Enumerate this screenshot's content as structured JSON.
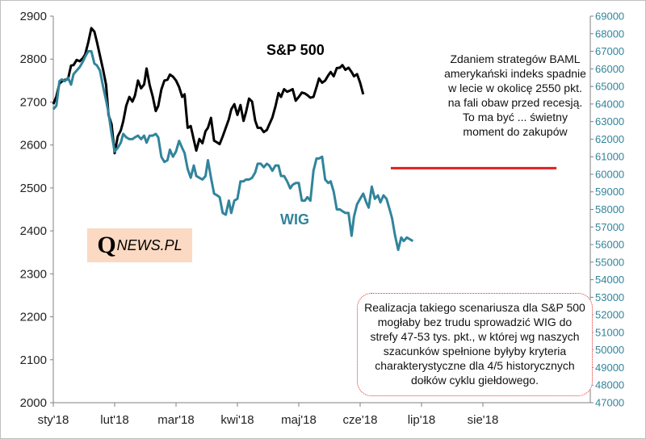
{
  "logo": {
    "q": "Q",
    "rest": "NEWS.PL"
  },
  "note_top": "Zdaniem strategów BAML amerykański indeks spadnie w lecie w okolicę 2550 pkt. na fali obaw przed recesją. To ma być  ... świetny moment do zakupów",
  "note_bottom": "Realizacja takiego scenariusza dla S&P 500  mogłaby bez trudu sprowadzić WIG do strefy 47-53 tys. pkt., w której wg naszych szacunków spełnione byłyby kryteria charakterystyczne dla 4/5 historycznych dołków cyklu giełdowego.",
  "colors": {
    "sp500": "#000000",
    "wig": "#31849b",
    "target_line": "#e02020",
    "note_border": "#e03030",
    "logo_bg": "#fbd9c2"
  },
  "chart_data": {
    "type": "line",
    "x_tick_labels": [
      "sty'18",
      "lut'18",
      "mar'18",
      "kwi'18",
      "maj'18",
      "cze'18",
      "lip'18",
      "sie'18"
    ],
    "x_range_months": [
      0,
      8
    ],
    "y_left": {
      "ticks": [
        2000,
        2100,
        2200,
        2300,
        2400,
        2500,
        2600,
        2700,
        2800,
        2900
      ],
      "range": [
        2000,
        2900
      ]
    },
    "y_right": {
      "ticks": [
        47000,
        48000,
        49000,
        50000,
        51000,
        52000,
        53000,
        54000,
        55000,
        56000,
        57000,
        58000,
        59000,
        60000,
        61000,
        62000,
        63000,
        64000,
        65000,
        66000,
        67000,
        68000,
        69000
      ],
      "range": [
        47000,
        69000
      ]
    },
    "grid": false,
    "series": [
      {
        "name": "S&P 500",
        "axis": "left",
        "color": "#000000",
        "points": [
          [
            0.0,
            2695
          ],
          [
            0.05,
            2713
          ],
          [
            0.1,
            2743
          ],
          [
            0.14,
            2748
          ],
          [
            0.19,
            2752
          ],
          [
            0.24,
            2753
          ],
          [
            0.29,
            2785
          ],
          [
            0.33,
            2786
          ],
          [
            0.38,
            2798
          ],
          [
            0.43,
            2795
          ],
          [
            0.48,
            2802
          ],
          [
            0.52,
            2811
          ],
          [
            0.57,
            2839
          ],
          [
            0.62,
            2872
          ],
          [
            0.67,
            2864
          ],
          [
            0.71,
            2840
          ],
          [
            0.76,
            2808
          ],
          [
            0.81,
            2776
          ],
          [
            0.86,
            2740
          ],
          [
            0.9,
            2670
          ],
          [
            0.95,
            2648
          ],
          [
            1.0,
            2581
          ],
          [
            1.05,
            2620
          ],
          [
            1.1,
            2634
          ],
          [
            1.14,
            2655
          ],
          [
            1.19,
            2692
          ],
          [
            1.24,
            2712
          ],
          [
            1.29,
            2701
          ],
          [
            1.33,
            2715
          ],
          [
            1.38,
            2750
          ],
          [
            1.43,
            2732
          ],
          [
            1.48,
            2741
          ],
          [
            1.52,
            2778
          ],
          [
            1.57,
            2740
          ],
          [
            1.62,
            2713
          ],
          [
            1.67,
            2679
          ],
          [
            1.71,
            2691
          ],
          [
            1.76,
            2729
          ],
          [
            1.81,
            2750
          ],
          [
            1.86,
            2752
          ],
          [
            1.9,
            2764
          ],
          [
            1.95,
            2759
          ],
          [
            2.0,
            2750
          ],
          [
            2.05,
            2735
          ],
          [
            2.1,
            2712
          ],
          [
            2.14,
            2718
          ],
          [
            2.19,
            2640
          ],
          [
            2.24,
            2644
          ],
          [
            2.29,
            2612
          ],
          [
            2.33,
            2587
          ],
          [
            2.38,
            2614
          ],
          [
            2.43,
            2604
          ],
          [
            2.48,
            2632
          ],
          [
            2.52,
            2640
          ],
          [
            2.57,
            2663
          ],
          [
            2.62,
            2610
          ],
          [
            2.67,
            2606
          ],
          [
            2.71,
            2602
          ],
          [
            2.76,
            2620
          ],
          [
            2.81,
            2640
          ],
          [
            2.86,
            2660
          ],
          [
            2.9,
            2683
          ],
          [
            2.95,
            2695
          ],
          [
            3.0,
            2670
          ],
          [
            3.05,
            2693
          ],
          [
            3.1,
            2656
          ],
          [
            3.14,
            2676
          ],
          [
            3.19,
            2708
          ],
          [
            3.24,
            2701
          ],
          [
            3.29,
            2657
          ],
          [
            3.33,
            2640
          ],
          [
            3.38,
            2640
          ],
          [
            3.43,
            2630
          ],
          [
            3.48,
            2635
          ],
          [
            3.52,
            2648
          ],
          [
            3.57,
            2664
          ],
          [
            3.62,
            2690
          ],
          [
            3.67,
            2721
          ],
          [
            3.71,
            2712
          ],
          [
            3.76,
            2730
          ],
          [
            3.81,
            2724
          ],
          [
            3.86,
            2727
          ],
          [
            3.9,
            2730
          ],
          [
            3.95,
            2703
          ],
          [
            4.0,
            2712
          ],
          [
            4.05,
            2722
          ],
          [
            4.1,
            2720
          ],
          [
            4.14,
            2716
          ],
          [
            4.19,
            2710
          ],
          [
            4.24,
            2712
          ],
          [
            4.29,
            2735
          ],
          [
            4.33,
            2755
          ],
          [
            4.38,
            2745
          ],
          [
            4.43,
            2750
          ],
          [
            4.48,
            2762
          ],
          [
            4.52,
            2770
          ],
          [
            4.57,
            2760
          ],
          [
            4.62,
            2779
          ],
          [
            4.67,
            2780
          ],
          [
            4.71,
            2786
          ],
          [
            4.76,
            2775
          ],
          [
            4.81,
            2780
          ],
          [
            4.86,
            2770
          ],
          [
            4.9,
            2760
          ],
          [
            4.95,
            2765
          ],
          [
            5.0,
            2745
          ],
          [
            5.05,
            2718
          ]
        ]
      },
      {
        "name": "WIG",
        "axis": "right",
        "color": "#31849b",
        "points": [
          [
            0.0,
            63700
          ],
          [
            0.05,
            63900
          ],
          [
            0.1,
            65300
          ],
          [
            0.14,
            65400
          ],
          [
            0.19,
            65300
          ],
          [
            0.24,
            65500
          ],
          [
            0.29,
            65100
          ],
          [
            0.33,
            65700
          ],
          [
            0.38,
            65900
          ],
          [
            0.43,
            66100
          ],
          [
            0.48,
            66400
          ],
          [
            0.52,
            66700
          ],
          [
            0.57,
            67000
          ],
          [
            0.62,
            67000
          ],
          [
            0.67,
            66300
          ],
          [
            0.71,
            66200
          ],
          [
            0.76,
            65900
          ],
          [
            0.81,
            65000
          ],
          [
            0.86,
            64200
          ],
          [
            0.9,
            63500
          ],
          [
            0.95,
            62300
          ],
          [
            1.0,
            61300
          ],
          [
            1.05,
            61500
          ],
          [
            1.1,
            61800
          ],
          [
            1.14,
            62300
          ],
          [
            1.19,
            62100
          ],
          [
            1.24,
            62000
          ],
          [
            1.29,
            62000
          ],
          [
            1.33,
            62100
          ],
          [
            1.38,
            62200
          ],
          [
            1.43,
            62000
          ],
          [
            1.48,
            62200
          ],
          [
            1.52,
            61800
          ],
          [
            1.57,
            62200
          ],
          [
            1.62,
            62200
          ],
          [
            1.67,
            62300
          ],
          [
            1.71,
            62100
          ],
          [
            1.76,
            61000
          ],
          [
            1.81,
            60700
          ],
          [
            1.86,
            60800
          ],
          [
            1.9,
            61400
          ],
          [
            1.95,
            61000
          ],
          [
            2.0,
            61300
          ],
          [
            2.05,
            61900
          ],
          [
            2.1,
            61500
          ],
          [
            2.14,
            61200
          ],
          [
            2.19,
            60300
          ],
          [
            2.24,
            59800
          ],
          [
            2.29,
            60500
          ],
          [
            2.33,
            59900
          ],
          [
            2.38,
            59800
          ],
          [
            2.43,
            59700
          ],
          [
            2.48,
            59900
          ],
          [
            2.52,
            60800
          ],
          [
            2.57,
            59800
          ],
          [
            2.62,
            58900
          ],
          [
            2.67,
            58800
          ],
          [
            2.71,
            58700
          ],
          [
            2.76,
            57800
          ],
          [
            2.81,
            57700
          ],
          [
            2.86,
            58500
          ],
          [
            2.9,
            57800
          ],
          [
            2.95,
            58500
          ],
          [
            3.0,
            58600
          ],
          [
            3.05,
            59600
          ],
          [
            3.1,
            59600
          ],
          [
            3.14,
            59700
          ],
          [
            3.19,
            59700
          ],
          [
            3.24,
            59800
          ],
          [
            3.29,
            60100
          ],
          [
            3.33,
            60600
          ],
          [
            3.38,
            60600
          ],
          [
            3.43,
            60400
          ],
          [
            3.48,
            60600
          ],
          [
            3.52,
            60500
          ],
          [
            3.57,
            60200
          ],
          [
            3.62,
            60500
          ],
          [
            3.67,
            60500
          ],
          [
            3.71,
            59900
          ],
          [
            3.76,
            59900
          ],
          [
            3.81,
            59600
          ],
          [
            3.86,
            59200
          ],
          [
            3.9,
            59400
          ],
          [
            3.95,
            59500
          ],
          [
            4.0,
            59500
          ],
          [
            4.05,
            58500
          ],
          [
            4.1,
            58500
          ],
          [
            4.14,
            58700
          ],
          [
            4.19,
            58500
          ],
          [
            4.24,
            60200
          ],
          [
            4.29,
            60900
          ],
          [
            4.33,
            60900
          ],
          [
            4.38,
            61000
          ],
          [
            4.43,
            59700
          ],
          [
            4.48,
            59500
          ],
          [
            4.52,
            59600
          ],
          [
            4.57,
            59000
          ],
          [
            4.62,
            58000
          ],
          [
            4.67,
            58000
          ],
          [
            4.71,
            57900
          ],
          [
            4.76,
            57800
          ],
          [
            4.81,
            57800
          ],
          [
            4.86,
            56500
          ],
          [
            4.9,
            57600
          ],
          [
            4.95,
            58300
          ],
          [
            5.0,
            58600
          ],
          [
            5.05,
            58900
          ],
          [
            5.1,
            58400
          ],
          [
            5.14,
            58100
          ],
          [
            5.19,
            59300
          ],
          [
            5.24,
            58600
          ],
          [
            5.29,
            58800
          ],
          [
            5.33,
            58400
          ],
          [
            5.38,
            58800
          ],
          [
            5.43,
            58600
          ],
          [
            5.48,
            58000
          ],
          [
            5.52,
            57500
          ],
          [
            5.57,
            56500
          ],
          [
            5.62,
            55700
          ],
          [
            5.67,
            56400
          ],
          [
            5.71,
            56200
          ],
          [
            5.76,
            56400
          ],
          [
            5.81,
            56300
          ],
          [
            5.86,
            56200
          ]
        ]
      }
    ],
    "series_labels": {
      "sp500": "S&P 500",
      "wig": "WIG"
    },
    "reference_line": {
      "axis": "right",
      "value": 60350,
      "x_from": 5.5,
      "x_to": 8.2,
      "color": "#e02020"
    }
  }
}
